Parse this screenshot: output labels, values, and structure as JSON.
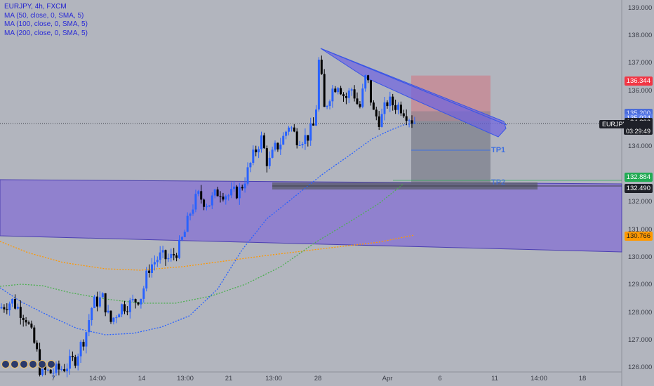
{
  "legend": {
    "title": "EURJPY, 4h, FXCM",
    "ma1": "MA (50, close, 0, SMA, 5)",
    "ma2": "MA (100, close, 0, SMA, 5)",
    "ma3": "MA (200, close, 0, SMA, 5)"
  },
  "price_axis": {
    "ticks": [
      "139.000",
      "138.000",
      "137.000",
      "136.000",
      "134.000",
      "132.000",
      "131.000",
      "130.000",
      "129.000",
      "128.000",
      "127.000",
      "126.000"
    ],
    "labels": {
      "stop": "136.344",
      "p135": "135.200",
      "p135b": "135.024",
      "current": "134.826",
      "symbol": "EURJPY",
      "countdown": "03:29:49",
      "tp_green": "132.884",
      "tp2": "132.490",
      "ma200": "130.766"
    }
  },
  "time_axis": [
    "7",
    "14:00",
    "14",
    "13:00",
    "21",
    "13:00",
    "28",
    "Apr",
    "6",
    "11",
    "14:00",
    "18"
  ],
  "annotations": {
    "tp1": "TP1",
    "tp2": "TP2"
  },
  "colors": {
    "bull": "#2962ff",
    "bear": "#000000",
    "ma50": "#2962ff",
    "ma100": "#4caf50",
    "ma200": "#ff9800",
    "stop": "#f23645",
    "zone": "#7b61d9"
  },
  "chart_data": {
    "type": "candlestick",
    "symbol": "EURJPY",
    "interval": "4h",
    "ylim": [
      125.9,
      139.2
    ],
    "candles_summary": "uptrend from ~126 to ~137.5 peak, then pullback to ~134.8",
    "trendline": {
      "from": 137.5,
      "to": 134.9
    },
    "supply_demand_zone": [
      130.2,
      132.9
    ],
    "short_position": {
      "entry": 134.9,
      "stop": 136.344,
      "tp1": 133.8,
      "tp2": 132.49
    }
  }
}
